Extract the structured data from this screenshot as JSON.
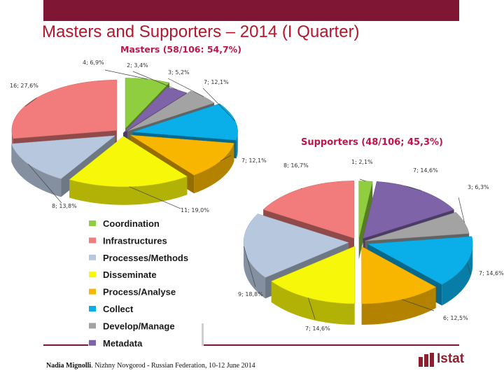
{
  "slide": {
    "title": "Masters and Supporters – 2014 (I Quarter)",
    "footer_name": "Nadia Mignolli",
    "footer_rest": ". Nizhny Novgorod - Russian Federation, 10-12 June 2014",
    "logo_text": "Istat"
  },
  "colors": {
    "Coordination": "#8fce3e",
    "Infrastructures": "#f27c7c",
    "Processes/Methods": "#b7c8de",
    "Disseminate": "#f7f709",
    "Process/Analyse": "#f8b600",
    "Collect": "#0aaee8",
    "Develop/Manage": "#a3a3a3",
    "Metadata": "#7e63a8"
  },
  "chart_data": [
    {
      "type": "pie",
      "title": "Masters (58/106: 54,7%)",
      "categories": [
        "Coordination",
        "Metadata",
        "Develop/Manage",
        "Collect",
        "Process/Analyse",
        "Disseminate",
        "Processes/Methods",
        "Infrastructures"
      ],
      "values": [
        4,
        2,
        3,
        7,
        7,
        11,
        8,
        16
      ],
      "labels": [
        "4; 6,9%",
        "2; 3,4%",
        "3; 5,2%",
        "7; 12,1%",
        "7; 12,1%",
        "11; 19,0%",
        "8; 13,8%",
        "16; 27,6%"
      ]
    },
    {
      "type": "pie",
      "title": "Supporters (48/106; 45,3%)",
      "categories": [
        "Coordination",
        "Metadata",
        "Develop/Manage",
        "Collect",
        "Process/Analyse",
        "Disseminate",
        "Processes/Methods",
        "Infrastructures"
      ],
      "values": [
        1,
        7,
        3,
        7,
        6,
        7,
        9,
        8
      ],
      "labels": [
        "1; 2,1%",
        "7; 14,6%",
        "3; 6,3%",
        "7; 14,6%",
        "6; 12,5%",
        "7; 14,6%",
        "9; 18,8%",
        "8; 16,7%"
      ]
    }
  ],
  "legend": {
    "items": [
      "Coordination",
      "Infrastructures",
      "Processes/Methods",
      "Disseminate",
      "Process/Analyse",
      "Collect",
      "Develop/Manage",
      "Metadata"
    ]
  }
}
